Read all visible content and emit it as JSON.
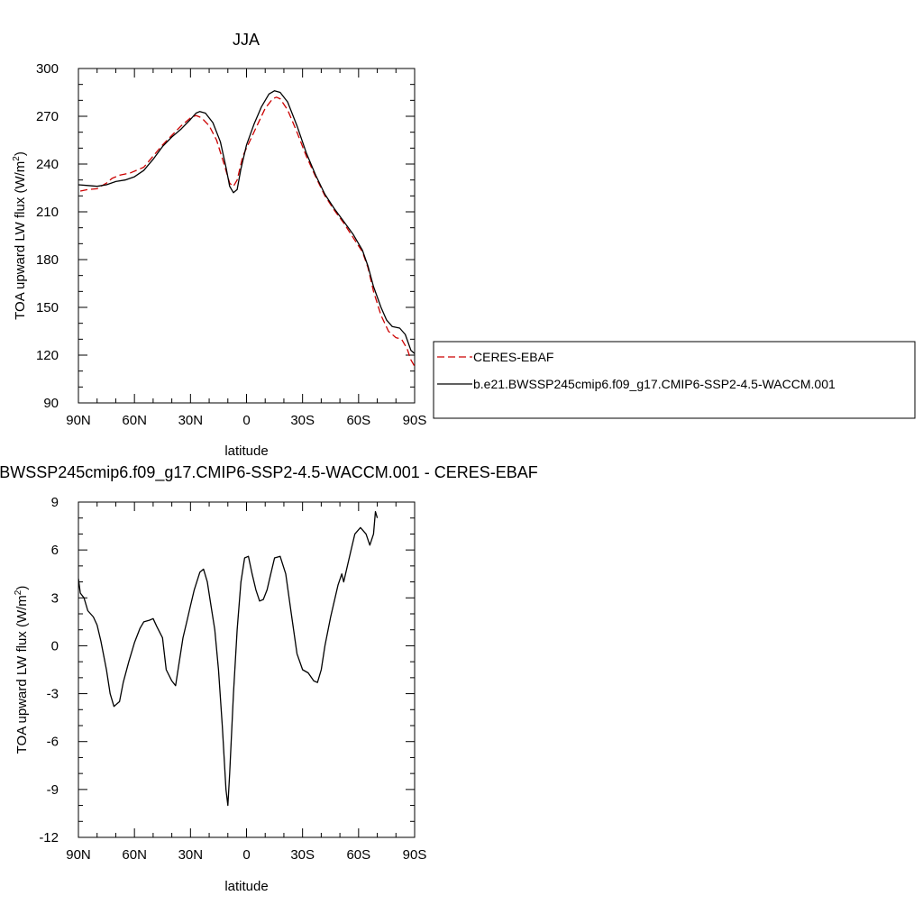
{
  "chart_data": [
    {
      "type": "line",
      "title": "JJA",
      "xlabel": "latitude",
      "ylabel_main": "TOA upward LW flux (W/m",
      "ylabel_sup": "2",
      "ylabel_close": ")",
      "xlim": [
        -90,
        90
      ],
      "ylim": [
        90,
        300
      ],
      "xticks": [
        -90,
        -60,
        -30,
        0,
        30,
        60,
        90
      ],
      "xtick_labels": [
        "90N",
        "60N",
        "30N",
        "0",
        "30S",
        "60S",
        "90S"
      ],
      "yticks": [
        90,
        120,
        150,
        180,
        210,
        240,
        270,
        300
      ],
      "ytick_labels": [
        "90",
        "120",
        "150",
        "180",
        "210",
        "240",
        "270",
        "300"
      ],
      "legend_position": "right",
      "series": [
        {
          "name": "CERES-EBAF",
          "color": "#cc0000",
          "dash": "dashed",
          "points": [
            [
              -89,
              223
            ],
            [
              -85,
              224
            ],
            [
              -80,
              224.5
            ],
            [
              -78,
              226
            ],
            [
              -75,
              228
            ],
            [
              -72,
              231
            ],
            [
              -68,
              233
            ],
            [
              -62,
              234.5
            ],
            [
              -55,
              238
            ],
            [
              -50,
              245
            ],
            [
              -45,
              252
            ],
            [
              -40,
              258
            ],
            [
              -35,
              264
            ],
            [
              -30,
              269
            ],
            [
              -27,
              270.5
            ],
            [
              -24,
              269
            ],
            [
              -20,
              264
            ],
            [
              -16,
              255
            ],
            [
              -12,
              240
            ],
            [
              -9,
              228
            ],
            [
              -7,
              226
            ],
            [
              -5,
              230
            ],
            [
              -2,
              245
            ],
            [
              2,
              255
            ],
            [
              6,
              265
            ],
            [
              10,
              275
            ],
            [
              14,
              281
            ],
            [
              16,
              282
            ],
            [
              18,
              281
            ],
            [
              22,
              274
            ],
            [
              27,
              260
            ],
            [
              32,
              245
            ],
            [
              37,
              232
            ],
            [
              42,
              220
            ],
            [
              47,
              211
            ],
            [
              52,
              203
            ],
            [
              57,
              194
            ],
            [
              62,
              185
            ],
            [
              65,
              175
            ],
            [
              68,
              160
            ],
            [
              72,
              145
            ],
            [
              76,
              135
            ],
            [
              80,
              131
            ],
            [
              83,
              130
            ],
            [
              86,
              124
            ],
            [
              88,
              117
            ],
            [
              90,
              113
            ]
          ]
        },
        {
          "name": "b.e21.BWSSP245cmip6.f09_g17.CMIP6-SSP2-4.5-WACCM.001",
          "color": "#000000",
          "dash": "solid",
          "points": [
            [
              -90,
              227
            ],
            [
              -85,
              226.5
            ],
            [
              -80,
              226
            ],
            [
              -75,
              227
            ],
            [
              -70,
              229
            ],
            [
              -65,
              230
            ],
            [
              -60,
              232
            ],
            [
              -55,
              236
            ],
            [
              -50,
              243
            ],
            [
              -45,
              251
            ],
            [
              -40,
              257
            ],
            [
              -35,
              262
            ],
            [
              -30,
              268
            ],
            [
              -27,
              272
            ],
            [
              -25,
              273
            ],
            [
              -22,
              272
            ],
            [
              -18,
              266
            ],
            [
              -14,
              254
            ],
            [
              -11,
              238
            ],
            [
              -9,
              226
            ],
            [
              -7,
              222
            ],
            [
              -5,
              224
            ],
            [
              -3,
              237
            ],
            [
              0,
              252
            ],
            [
              4,
              265
            ],
            [
              8,
              276
            ],
            [
              12,
              284
            ],
            [
              15,
              286
            ],
            [
              18,
              285
            ],
            [
              22,
              279
            ],
            [
              27,
              264
            ],
            [
              32,
              247
            ],
            [
              37,
              233
            ],
            [
              42,
              221
            ],
            [
              47,
              212
            ],
            [
              52,
              204
            ],
            [
              57,
              196
            ],
            [
              62,
              186
            ],
            [
              65,
              176
            ],
            [
              68,
              163
            ],
            [
              72,
              150
            ],
            [
              75,
              142
            ],
            [
              78,
              138
            ],
            [
              82,
              137
            ],
            [
              85,
              133
            ],
            [
              88,
              123
            ],
            [
              90,
              121
            ]
          ]
        }
      ]
    },
    {
      "type": "line",
      "title": "b.e21.BWSSP245cmip6.f09_g17.CMIP6-SSP2-4.5-WACCM.001 - CERES-EBAF",
      "xlabel": "latitude",
      "ylabel_main": "TOA upward LW flux (W/m",
      "ylabel_sup": "2",
      "ylabel_close": ")",
      "xlim": [
        -90,
        90
      ],
      "ylim": [
        -12,
        9
      ],
      "xticks": [
        -90,
        -60,
        -30,
        0,
        30,
        60,
        90
      ],
      "xtick_labels": [
        "90N",
        "60N",
        "30N",
        "0",
        "30S",
        "60S",
        "90S"
      ],
      "yticks": [
        -12,
        -9,
        -6,
        -3,
        0,
        3,
        6,
        9
      ],
      "ytick_labels": [
        "-12",
        "-9",
        "-6",
        "-3",
        "0",
        "3",
        "6",
        "9"
      ],
      "series": [
        {
          "color": "#000000",
          "dash": "solid",
          "points": [
            [
              -90,
              4.2
            ],
            [
              -89,
              3.3
            ],
            [
              -87,
              3
            ],
            [
              -85,
              2.2
            ],
            [
              -82,
              1.8
            ],
            [
              -80,
              1.3
            ],
            [
              -78,
              0.3
            ],
            [
              -75,
              -1.5
            ],
            [
              -73,
              -3
            ],
            [
              -71,
              -3.8
            ],
            [
              -68,
              -3.5
            ],
            [
              -66,
              -2.3
            ],
            [
              -63,
              -1
            ],
            [
              -60,
              0.2
            ],
            [
              -57,
              1.1
            ],
            [
              -55,
              1.5
            ],
            [
              -52,
              1.6
            ],
            [
              -50,
              1.7
            ],
            [
              -48,
              1.2
            ],
            [
              -45,
              0.5
            ],
            [
              -43,
              -1.5
            ],
            [
              -40,
              -2.2
            ],
            [
              -38,
              -2.5
            ],
            [
              -36,
              -1
            ],
            [
              -34,
              0.5
            ],
            [
              -32,
              1.5
            ],
            [
              -30,
              2.5
            ],
            [
              -28,
              3.5
            ],
            [
              -25,
              4.6
            ],
            [
              -23,
              4.8
            ],
            [
              -21,
              4
            ],
            [
              -19,
              2.5
            ],
            [
              -17,
              1
            ],
            [
              -15,
              -1.5
            ],
            [
              -13,
              -5
            ],
            [
              -11,
              -9
            ],
            [
              -10,
              -10
            ],
            [
              -9,
              -8
            ],
            [
              -7,
              -3
            ],
            [
              -5,
              1
            ],
            [
              -3,
              4
            ],
            [
              -1,
              5.5
            ],
            [
              1,
              5.6
            ],
            [
              3,
              4.5
            ],
            [
              5,
              3.5
            ],
            [
              7,
              2.8
            ],
            [
              9,
              2.9
            ],
            [
              11,
              3.5
            ],
            [
              13,
              4.5
            ],
            [
              15,
              5.5
            ],
            [
              18,
              5.6
            ],
            [
              21,
              4.5
            ],
            [
              24,
              2
            ],
            [
              27,
              -0.5
            ],
            [
              30,
              -1.5
            ],
            [
              33,
              -1.7
            ],
            [
              36,
              -2.2
            ],
            [
              38,
              -2.3
            ],
            [
              40,
              -1.5
            ],
            [
              42,
              0
            ],
            [
              45,
              1.8
            ],
            [
              47,
              2.8
            ],
            [
              49,
              3.8
            ],
            [
              51,
              4.5
            ],
            [
              52,
              4
            ],
            [
              54,
              5
            ],
            [
              56,
              6
            ],
            [
              58,
              7
            ],
            [
              61,
              7.4
            ],
            [
              64,
              7
            ],
            [
              66,
              6.3
            ],
            [
              68,
              7
            ],
            [
              69,
              8.4
            ],
            [
              70,
              8
            ]
          ]
        }
      ]
    }
  ]
}
